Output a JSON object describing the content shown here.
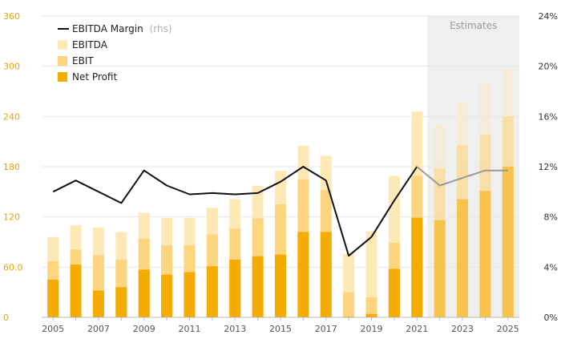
{
  "chart_data": {
    "type": "bar",
    "x": [
      "2005",
      "2006",
      "2007",
      "2008",
      "2009",
      "2010",
      "2011",
      "2012",
      "2013",
      "2014",
      "2015",
      "2016",
      "2017",
      "2018",
      "2019",
      "2020",
      "2021",
      "2022",
      "2023",
      "2024",
      "2025"
    ],
    "x_tick_labels": [
      "2005",
      "2007",
      "2009",
      "2011",
      "2013",
      "2015",
      "2017",
      "2019",
      "2021",
      "2023",
      "2025"
    ],
    "series": [
      {
        "name": "EBITDA",
        "kind": "bar",
        "color": "#fde9b6",
        "values": [
          96,
          110,
          107,
          102,
          125,
          119,
          119,
          131,
          141,
          157,
          175,
          205,
          193,
          76,
          103,
          169,
          246,
          230,
          258,
          280,
          297
        ]
      },
      {
        "name": "EBIT",
        "kind": "bar",
        "color": "#fdd57e",
        "values": [
          67,
          81,
          74,
          69,
          94,
          86,
          86,
          99,
          106,
          118,
          135,
          165,
          152,
          30,
          24,
          89,
          169,
          178,
          206,
          218,
          240
        ]
      },
      {
        "name": "Net Profit",
        "kind": "bar",
        "color": "#f6ab00",
        "values": [
          45,
          63,
          32,
          36,
          57,
          51,
          54,
          61,
          69,
          73,
          75,
          102,
          102,
          1,
          4,
          58,
          119,
          116,
          141,
          151,
          180
        ]
      },
      {
        "name": "EBITDA Margin",
        "name_suffix": "(rhs)",
        "kind": "line",
        "axis": "right",
        "color": "#111111",
        "values": [
          10.0,
          10.9,
          10.0,
          9.1,
          11.7,
          10.5,
          9.8,
          9.9,
          9.8,
          9.9,
          10.8,
          12.0,
          10.9,
          4.9,
          6.4,
          9.3,
          12.0,
          10.5,
          11.1,
          11.7,
          11.7
        ]
      }
    ],
    "y_left": {
      "ticks": [
        "0",
        "60.0",
        "120",
        "180",
        "240",
        "300",
        "360"
      ],
      "ylim": [
        0,
        360
      ]
    },
    "y_right": {
      "ticks": [
        "0%",
        "4%",
        "8%",
        "12%",
        "16%",
        "20%",
        "24%"
      ],
      "ylim": [
        0,
        24
      ]
    },
    "estimates": {
      "label": "Estimates",
      "from_year": "2022",
      "to_year": "2025"
    },
    "legend": {
      "placement": "top-left"
    },
    "grid": true
  }
}
